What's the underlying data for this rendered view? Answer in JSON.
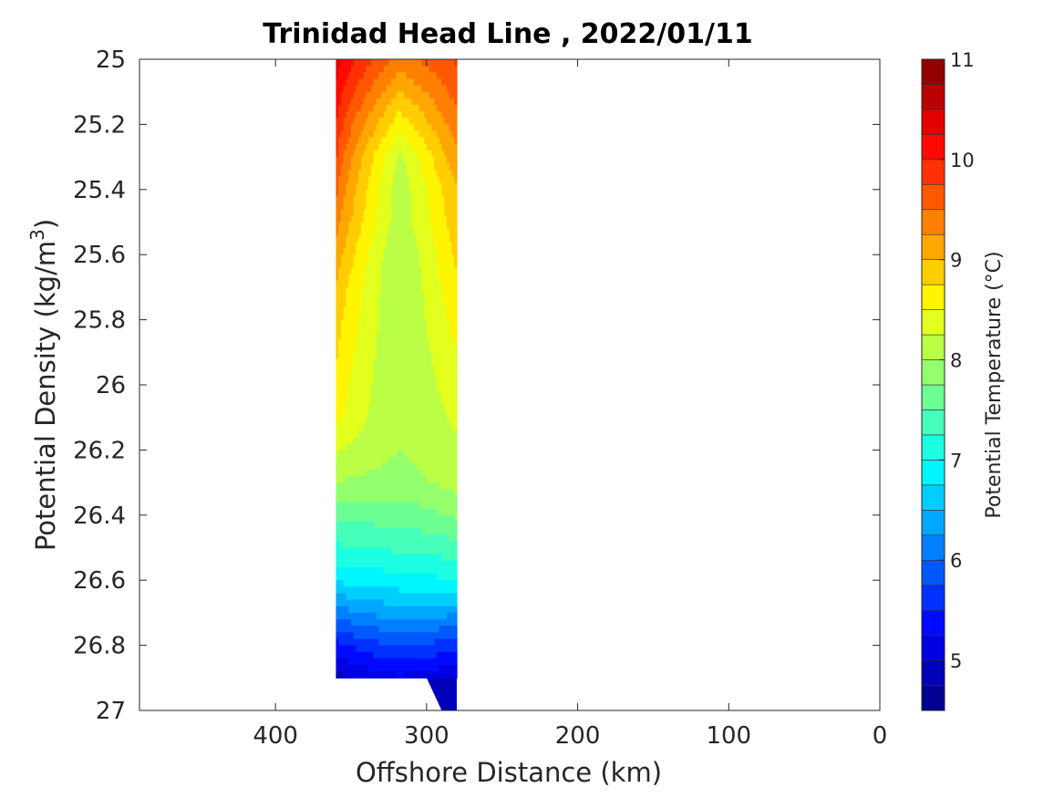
{
  "chart_data": {
    "type": "heatmap",
    "subtype": "filled-contour",
    "title": "Trinidad Head Line , 2022/01/11",
    "xlabel": "Offshore Distance (km)",
    "ylabel_main": "Potential Density (kg/m",
    "ylabel_sup": "3",
    "ylabel_close": ")",
    "xlim": [
      490,
      0
    ],
    "ylim": [
      25,
      27
    ],
    "x_reversed": true,
    "y_reversed": true,
    "xticks": [
      400,
      300,
      200,
      100,
      0
    ],
    "xtick_labels": [
      "400",
      "300",
      "200",
      "100",
      "0"
    ],
    "yticks": [
      25,
      25.2,
      25.4,
      25.6,
      25.8,
      26,
      26.2,
      26.4,
      26.6,
      26.8,
      27
    ],
    "ytick_labels": [
      "25",
      "25.2",
      "25.4",
      "25.6",
      "25.8",
      "26",
      "26.2",
      "26.4",
      "26.6",
      "26.8",
      "27"
    ],
    "data_extent_x": [
      360,
      280
    ],
    "data_extent_y": [
      25,
      26.9
    ],
    "grid": false,
    "colorbar": {
      "label": "Potential Temperature (°C)",
      "colormap": "jet",
      "range": [
        4.5,
        11
      ],
      "step": 0.25,
      "ticks": [
        5,
        6,
        7,
        8,
        9,
        10,
        11
      ],
      "tick_labels": [
        "5",
        "6",
        "7",
        "8",
        "9",
        "10",
        "11"
      ]
    },
    "profile": {
      "density": [
        25.0,
        25.1,
        25.2,
        25.3,
        25.4,
        25.5,
        25.6,
        25.7,
        25.8,
        25.9,
        26.0,
        26.1,
        26.2,
        26.3,
        26.4,
        26.5,
        26.6,
        26.7,
        26.8,
        26.9
      ],
      "west_edge_temp": [
        10.4,
        10.2,
        10.0,
        9.8,
        9.6,
        9.4,
        9.2,
        9.0,
        8.9,
        8.8,
        8.7,
        8.6,
        8.3,
        8.0,
        7.6,
        7.2,
        6.8,
        6.1,
        5.4,
        4.9
      ],
      "core_temp": [
        9.4,
        9.0,
        8.6,
        8.2,
        8.1,
        8.1,
        8.0,
        8.0,
        8.0,
        8.0,
        8.0,
        8.0,
        8.0,
        7.9,
        7.6,
        7.3,
        6.9,
        6.4,
        5.8,
        5.2
      ],
      "east_edge_temp": [
        9.8,
        9.6,
        9.4,
        9.2,
        9.0,
        8.9,
        8.8,
        8.7,
        8.6,
        8.5,
        8.4,
        8.3,
        8.2,
        8.1,
        7.8,
        7.4,
        7.0,
        6.3,
        5.6,
        5.0
      ]
    }
  }
}
